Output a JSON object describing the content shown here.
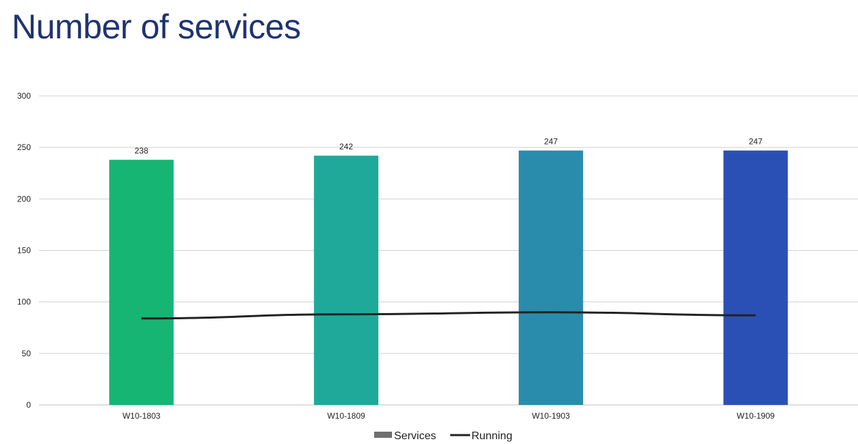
{
  "chart_data": {
    "type": "bar",
    "title": "Number of services",
    "categories": [
      "W10-1803",
      "W10-1809",
      "W10-1903",
      "W10-1909"
    ],
    "series": [
      {
        "name": "Services",
        "kind": "bar",
        "values": [
          238,
          242,
          247,
          247
        ]
      },
      {
        "name": "Running",
        "kind": "line",
        "values": [
          84,
          88,
          90,
          87
        ]
      }
    ],
    "bar_colors": [
      "#16b574",
      "#1fa99a",
      "#2a8cac",
      "#2b50b5"
    ],
    "line_color": "#222222",
    "ylim": [
      0,
      300
    ],
    "yticks": [
      0,
      50,
      100,
      150,
      200,
      250,
      300
    ],
    "grid": true,
    "legend": "bottom-center"
  }
}
